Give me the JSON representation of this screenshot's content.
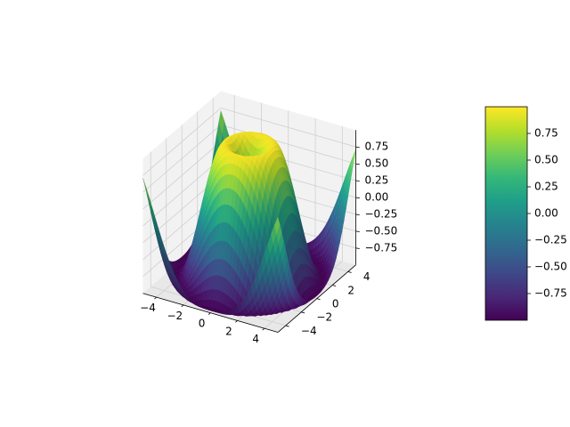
{
  "chart_data": {
    "type": "surface",
    "function": "sin(sqrt(x^2 + y^2))",
    "x": {
      "range": [
        -5,
        5
      ],
      "ticks": [
        -4,
        -2,
        0,
        2,
        4
      ],
      "tick_labels": [
        "−4",
        "−2",
        "0",
        "2",
        "4"
      ]
    },
    "y": {
      "range": [
        -5,
        5
      ],
      "ticks": [
        -4,
        -2,
        0,
        2,
        4
      ],
      "tick_labels": [
        "−4",
        "−2",
        "0",
        "2",
        "4"
      ]
    },
    "z": {
      "range": [
        -1,
        1
      ],
      "ticks": [
        -0.75,
        -0.5,
        -0.25,
        0,
        0.25,
        0.5,
        0.75
      ],
      "tick_labels": [
        "−0.75",
        "−0.50",
        "−0.25",
        "0.00",
        "0.25",
        "0.50",
        "0.75"
      ]
    },
    "grid": true,
    "colormap": "viridis",
    "colorbar": {
      "position": "right",
      "range": [
        -1,
        1
      ],
      "ticks": [
        -0.75,
        -0.5,
        -0.25,
        0,
        0.25,
        0.5,
        0.75
      ],
      "tick_labels": [
        "−0.75",
        "−0.50",
        "−0.25",
        "0.00",
        "0.25",
        "0.50",
        "0.75"
      ]
    }
  },
  "colors": {
    "viridis": [
      "#440154",
      "#482878",
      "#3e4989",
      "#31688e",
      "#26828e",
      "#1f9e89",
      "#35b779",
      "#6ece58",
      "#b5de2b",
      "#fde725"
    ],
    "pane": "#f2f2f2",
    "pane_dark": "#e8e8e8",
    "grid": "#d0d0d0"
  }
}
